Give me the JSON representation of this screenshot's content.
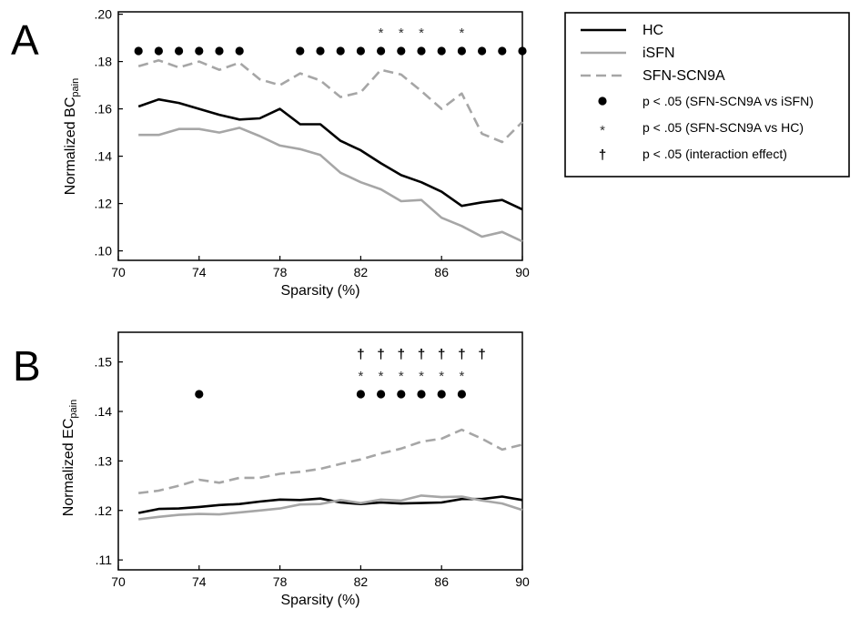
{
  "figure": {
    "panel_letters": [
      "A",
      "B"
    ]
  },
  "legend": {
    "items": [
      {
        "label": "HC",
        "kind": "line",
        "color": "#000000",
        "dash": "solid"
      },
      {
        "label": "iSFN",
        "kind": "line",
        "color": "#a6a6a6",
        "dash": "solid"
      },
      {
        "label": "SFN-SCN9A",
        "kind": "line",
        "color": "#a6a6a6",
        "dash": "dashed"
      },
      {
        "label": "p < .05 (SFN-SCN9A vs iSFN)",
        "kind": "dot",
        "color": "#000000"
      },
      {
        "label": "p < .05 (SFN-SCN9A vs HC)",
        "kind": "asterisk",
        "symbol": "*",
        "color": "#333333"
      },
      {
        "label": "p < .05 (interaction effect)",
        "kind": "dagger",
        "symbol": "†",
        "color": "#000000"
      }
    ]
  },
  "chart_data": [
    {
      "panel": "A",
      "type": "line",
      "xlabel": "Sparsity (%)",
      "ylabel_main": "Normalized BC",
      "ylabel_sub": "pain",
      "xlim": [
        70,
        90
      ],
      "ylim": [
        0.096,
        0.201
      ],
      "xticks": [
        70,
        74,
        78,
        82,
        86,
        90
      ],
      "xtick_labels": [
        "70",
        "74",
        "78",
        "82",
        "86",
        "90"
      ],
      "yticks": [
        0.1,
        0.12,
        0.14,
        0.16,
        0.18,
        0.2
      ],
      "ytick_labels": [
        ".10",
        ".12",
        ".14",
        ".16",
        ".18",
        ".20"
      ],
      "x": [
        71,
        72,
        73,
        74,
        75,
        76,
        77,
        78,
        79,
        80,
        81,
        82,
        83,
        84,
        85,
        86,
        87,
        88,
        89,
        90
      ],
      "series": [
        {
          "name": "HC",
          "color": "#000000",
          "dash": "solid",
          "values": [
            0.161,
            0.164,
            0.1625,
            0.16,
            0.1575,
            0.1555,
            0.156,
            0.16,
            0.1535,
            0.1535,
            0.1465,
            0.1425,
            0.137,
            0.132,
            0.129,
            0.125,
            0.119,
            0.1205,
            0.1215,
            0.1175
          ]
        },
        {
          "name": "iSFN",
          "color": "#a6a6a6",
          "dash": "solid",
          "values": [
            0.149,
            0.149,
            0.1515,
            0.1515,
            0.15,
            0.152,
            0.1485,
            0.1445,
            0.143,
            0.1405,
            0.133,
            0.129,
            0.126,
            0.121,
            0.1215,
            0.114,
            0.1105,
            0.106,
            0.108,
            0.104
          ]
        },
        {
          "name": "SFN-SCN9A",
          "color": "#a6a6a6",
          "dash": "dashed",
          "values": [
            0.178,
            0.1805,
            0.1775,
            0.18,
            0.1765,
            0.1795,
            0.1725,
            0.17,
            0.175,
            0.172,
            0.165,
            0.167,
            0.1765,
            0.1745,
            0.1675,
            0.16,
            0.1665,
            0.1495,
            0.146,
            0.1545
          ]
        }
      ],
      "markers": [
        {
          "kind": "dot",
          "row": 0,
          "x": [
            71,
            72,
            73,
            74,
            75,
            76,
            79,
            80,
            81,
            82,
            83,
            84,
            85,
            86,
            87,
            88,
            89,
            90
          ]
        },
        {
          "kind": "asterisk",
          "row": 1,
          "x": [
            83,
            84,
            85,
            87
          ]
        }
      ]
    },
    {
      "panel": "B",
      "type": "line",
      "xlabel": "Sparsity (%)",
      "ylabel_main": "Normalized EC",
      "ylabel_sub": "pain",
      "xlim": [
        70,
        90
      ],
      "ylim": [
        0.108,
        0.156
      ],
      "xticks": [
        70,
        74,
        78,
        82,
        86,
        90
      ],
      "xtick_labels": [
        "70",
        "74",
        "78",
        "82",
        "86",
        "90"
      ],
      "yticks": [
        0.11,
        0.12,
        0.13,
        0.14,
        0.15
      ],
      "ytick_labels": [
        ".11",
        ".12",
        ".13",
        ".14",
        ".15"
      ],
      "x": [
        71,
        72,
        73,
        74,
        75,
        76,
        77,
        78,
        79,
        80,
        81,
        82,
        83,
        84,
        85,
        86,
        87,
        88,
        89,
        90
      ],
      "series": [
        {
          "name": "HC",
          "color": "#000000",
          "dash": "solid",
          "values": [
            0.1195,
            0.1203,
            0.1204,
            0.1207,
            0.1211,
            0.1213,
            0.1218,
            0.1222,
            0.1221,
            0.1224,
            0.1216,
            0.1213,
            0.1216,
            0.1214,
            0.1215,
            0.1216,
            0.1223,
            0.1223,
            0.1228,
            0.1221
          ]
        },
        {
          "name": "iSFN",
          "color": "#a6a6a6",
          "dash": "solid",
          "values": [
            0.1182,
            0.1187,
            0.1191,
            0.1193,
            0.1192,
            0.1196,
            0.12,
            0.1204,
            0.1212,
            0.1213,
            0.1221,
            0.1215,
            0.1222,
            0.122,
            0.123,
            0.1227,
            0.1228,
            0.122,
            0.1214,
            0.1201
          ]
        },
        {
          "name": "SFN-SCN9A",
          "color": "#a6a6a6",
          "dash": "dashed",
          "values": [
            0.1235,
            0.124,
            0.125,
            0.1262,
            0.1256,
            0.1266,
            0.1266,
            0.1274,
            0.1278,
            0.1284,
            0.1294,
            0.1303,
            0.1315,
            0.1325,
            0.1339,
            0.1345,
            0.1363,
            0.1345,
            0.1323,
            0.1333
          ]
        }
      ],
      "markers": [
        {
          "kind": "dot",
          "row": 0,
          "x": [
            74,
            82,
            83,
            84,
            85,
            86,
            87
          ]
        },
        {
          "kind": "asterisk",
          "row": 1,
          "x": [
            82,
            83,
            84,
            85,
            86,
            87
          ]
        },
        {
          "kind": "dagger",
          "row": 2,
          "x": [
            82,
            83,
            84,
            85,
            86,
            87,
            88
          ]
        }
      ]
    }
  ]
}
